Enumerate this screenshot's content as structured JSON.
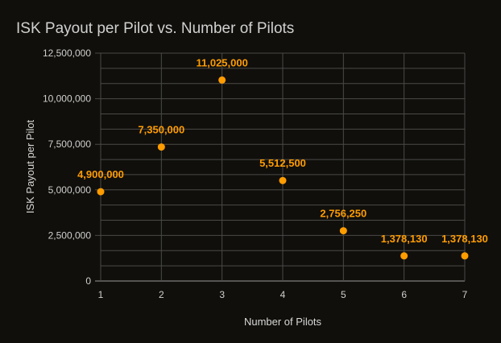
{
  "chart_data": {
    "type": "scatter",
    "title": "ISK Payout per Pilot vs. Number of Pilots",
    "xlabel": "Number of Pilots",
    "ylabel": "ISK Payout per Pilot",
    "x": [
      1,
      2,
      3,
      4,
      5,
      6,
      7
    ],
    "y": [
      4900000,
      7350000,
      11025000,
      5512500,
      2756250,
      1378130,
      1378130
    ],
    "data_labels": [
      "4,900,000",
      "7,350,000",
      "11,025,000",
      "5,512,500",
      "2,756,250",
      "1,378,130",
      "1,378,130"
    ],
    "xlim": [
      1,
      7
    ],
    "ylim": [
      0,
      12500000
    ],
    "x_ticks": [
      "1",
      "2",
      "3",
      "4",
      "5",
      "6",
      "7"
    ],
    "y_ticks": [
      "0",
      "2,500,000",
      "5,000,000",
      "7,500,000",
      "10,000,000",
      "12,500,000"
    ],
    "grid": true,
    "legend": "none",
    "colors": {
      "point": "#ff9c00",
      "grid": "#4a4a48",
      "background": "#100f0b"
    }
  }
}
